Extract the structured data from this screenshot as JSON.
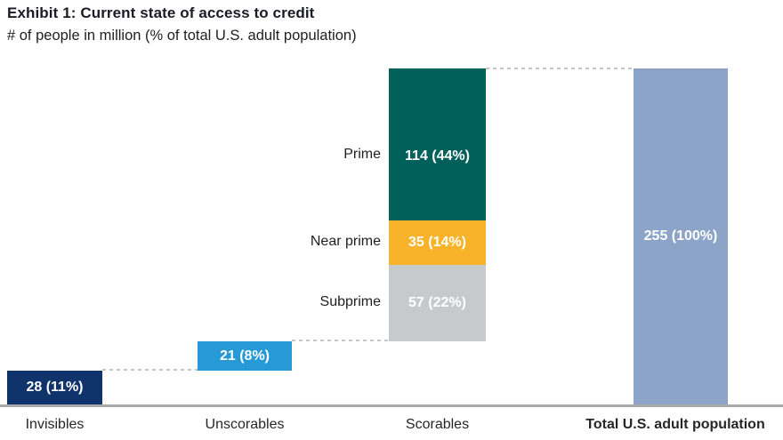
{
  "header": {
    "title": "Exhibit 1: Current state of access to credit",
    "subtitle": "# of people in million (% of total U.S. adult population)"
  },
  "chart_data": {
    "type": "bar",
    "subtype": "waterfall_stacked",
    "title": "Exhibit 1: Current state of access to credit",
    "subtitle": "# of people in million (% of total U.S. adult population)",
    "unit": "million people",
    "grid": false,
    "legend_position": "none",
    "baseline_color": "#A9A9A9",
    "connector_style": "dashed",
    "connector_color": "#C6C6C6",
    "value_label_color": "#FFFFFF",
    "categories": [
      "Invisibles",
      "Unscorables",
      "Scorables",
      "Total U.S. adult population"
    ],
    "bars": [
      {
        "category": "Invisibles",
        "value": 28,
        "pct": 11,
        "label": "28 (11%)",
        "color": "#10336B"
      },
      {
        "category": "Unscorables",
        "value": 21,
        "pct": 8,
        "label": "21 (8%)",
        "color": "#2699D6"
      },
      {
        "category": "Scorables",
        "value": 206,
        "segments": [
          {
            "name": "Subprime",
            "value": 57,
            "pct": 22,
            "label": "57 (22%)",
            "color": "#C7C9CA"
          },
          {
            "name": "Near prime",
            "value": 35,
            "pct": 14,
            "label": "35 (14%)",
            "color": "#F8B32A"
          },
          {
            "name": "Prime",
            "value": 114,
            "pct": 44,
            "label": "114 (44%)",
            "color": "#02605B"
          }
        ]
      },
      {
        "category": "Total U.S. adult population",
        "value": 255,
        "pct": 100,
        "label": "255 (100%)",
        "color": "#8BA4C7"
      }
    ]
  }
}
